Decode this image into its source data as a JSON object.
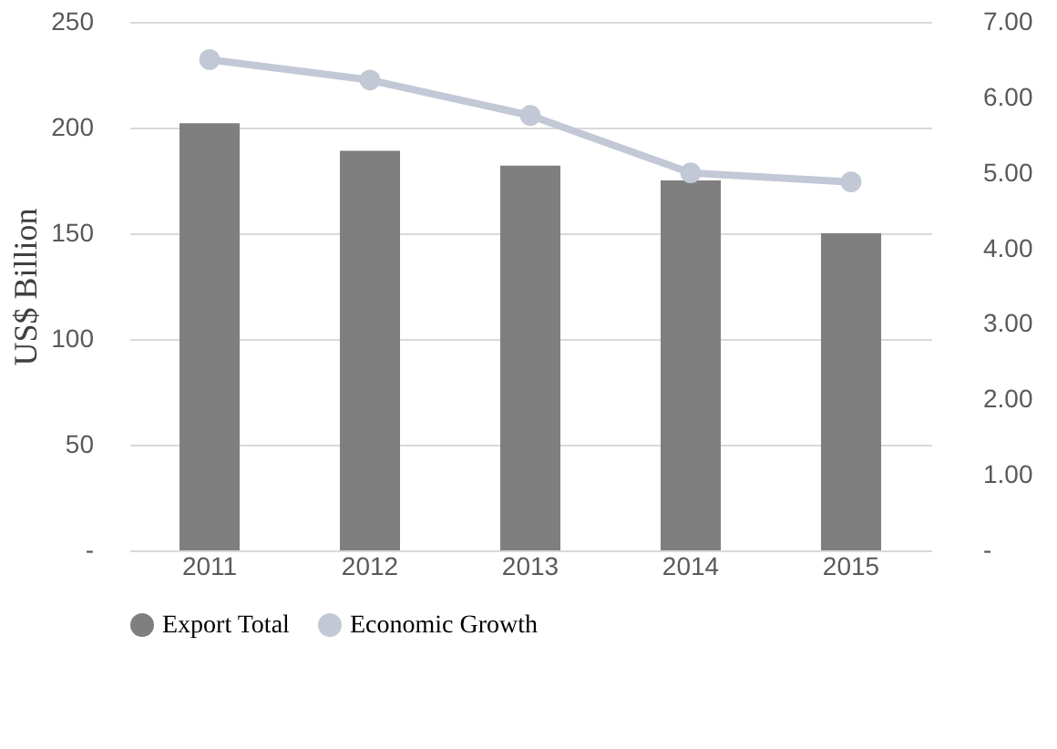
{
  "chart_data": {
    "type": "bar",
    "ylabel": "US$ Billion",
    "categories": [
      "2011",
      "2012",
      "2013",
      "2014",
      "2015"
    ],
    "series": [
      {
        "name": "Export Total",
        "color": "#7f7f7f",
        "values": [
          202,
          189,
          182,
          175,
          150
        ]
      },
      {
        "name": "Economic Growth",
        "type": "line",
        "axis": "y2",
        "color": "#c3c8d6",
        "marker": "circle",
        "values": [
          6.5,
          6.23,
          5.76,
          5.0,
          4.88
        ]
      }
    ],
    "ylim": [
      0,
      250
    ],
    "yticks": [
      {
        "value": 0,
        "label": "-"
      },
      50,
      100,
      150,
      200,
      250
    ],
    "y2lim": [
      0,
      7
    ],
    "y2ticks": [
      {
        "value": 0,
        "label": "-"
      },
      {
        "value": 1,
        "label": "1.00"
      },
      {
        "value": 2,
        "label": "2.00"
      },
      {
        "value": 3,
        "label": "3.00"
      },
      {
        "value": 4,
        "label": "4.00"
      },
      {
        "value": 5,
        "label": "5.00"
      },
      {
        "value": 6,
        "label": "6.00"
      },
      {
        "value": 7,
        "label": "7.00"
      }
    ],
    "grid": "y",
    "legend": "bottom"
  }
}
